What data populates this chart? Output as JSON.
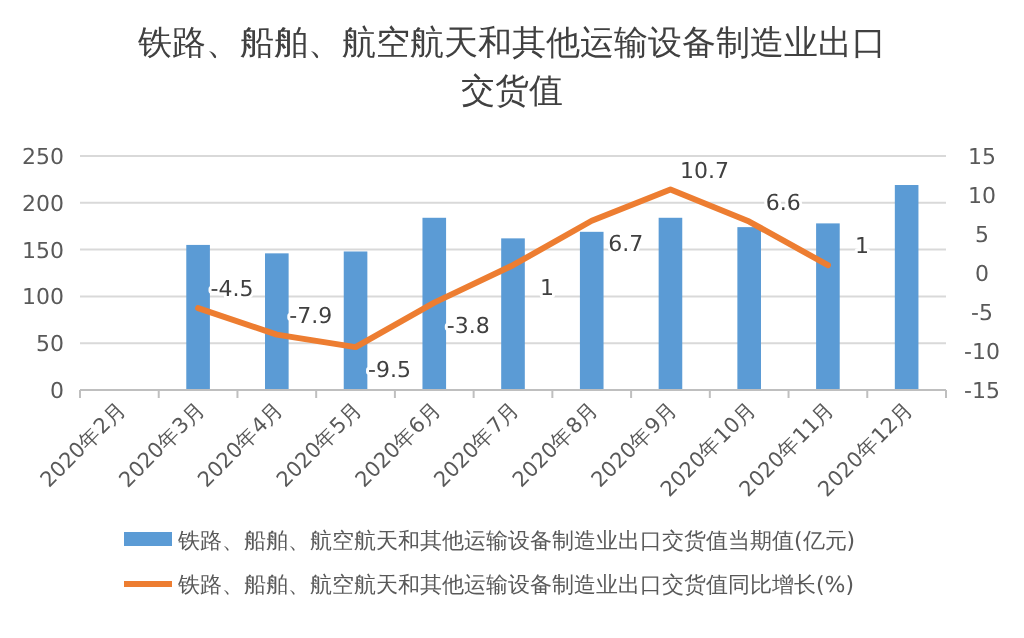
{
  "chart_data": {
    "type": "bar",
    "title": "铁路、船舶、航空航天和其他运输设备制造业出口交货值",
    "categories": [
      "2020年2月",
      "2020年3月",
      "2020年4月",
      "2020年5月",
      "2020年6月",
      "2020年7月",
      "2020年8月",
      "2020年9月",
      "2020年10月",
      "2020年11月",
      "2020年12月"
    ],
    "series": [
      {
        "name": "铁路、船舶、航空航天和其他运输设备制造业出口交货值当期值(亿元)",
        "color": "#5b9bd5",
        "values": [
          null,
          155,
          146,
          148,
          184,
          162,
          169,
          184,
          174,
          178,
          219
        ]
      },
      {
        "name": "铁路、船舶、航空航天和其他运输设备制造业出口交货值同比增长(%)",
        "type": "line",
        "axis": "y2",
        "color": "#ed7d31",
        "values": [
          null,
          -4.5,
          -7.9,
          -9.5,
          -3.8,
          1,
          6.7,
          10.7,
          6.6,
          1,
          null
        ],
        "value_labels": [
          null,
          "-4.5",
          "-7.9",
          "-9.5",
          "-3.8",
          "1",
          "6.7",
          "10.7",
          "6.6",
          "1",
          null
        ]
      }
    ],
    "ylim": [
      0,
      250
    ],
    "yticks": [
      0,
      50,
      100,
      150,
      200,
      250
    ],
    "y2lim": [
      -15,
      15
    ],
    "y2ticks": [
      -15,
      -10,
      -5,
      0,
      5,
      10,
      15
    ],
    "grid": "y",
    "legend": "bottom",
    "marker": "none",
    "line_style": "solid"
  }
}
